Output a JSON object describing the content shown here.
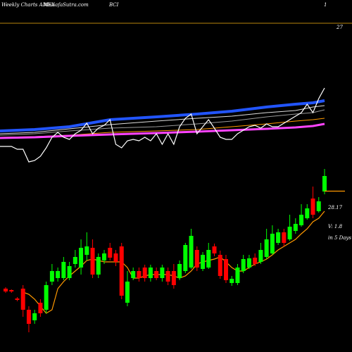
{
  "chart_data": [
    {
      "type": "candlestick",
      "title": "Weekly Charts AMEX",
      "source": "MunafaSutra.com",
      "symbol": "BCI",
      "page_number": "1",
      "top_label": "27",
      "forecast": 28.17,
      "volume_note": "V: 1.8",
      "horizon_note": "in 5 Days",
      "ylim": [
        23.6,
        33.6
      ],
      "up_color": "#00ff00",
      "down_color": "#ff0000",
      "ma_color": "#ff9900",
      "open": [
        25.4,
        25.36,
        25.12,
        25.4,
        24.8,
        24.5,
        25.0,
        24.8,
        25.6,
        25.7,
        25.7,
        25.7,
        26.1,
        26.0,
        26.36,
        26.56,
        25.8,
        26.2,
        26.56,
        26.4,
        26.6,
        25.0,
        25.7,
        25.9,
        26.0,
        25.7,
        25.9,
        25.7,
        25.9,
        25.9,
        25.7,
        25.9,
        26.0,
        26.5,
        25.96,
        26.0,
        26.6,
        26.36,
        26.24,
        25.56,
        25.56,
        25.9,
        26.0,
        26.28,
        26.16,
        26.3,
        26.4,
        26.7,
        27.0,
        26.8,
        27.04,
        27.2,
        27.4,
        27.96,
        27.6,
        28.16
      ],
      "close": [
        25.32,
        25.32,
        25.08,
        24.8,
        24.4,
        24.7,
        24.7,
        25.5,
        25.9,
        25.9,
        26.16,
        26.04,
        26.3,
        26.56,
        26.6,
        25.8,
        26.3,
        26.4,
        26.28,
        26.16,
        25.2,
        25.6,
        25.9,
        25.7,
        25.7,
        26.0,
        25.7,
        26.0,
        25.6,
        25.5,
        26.1,
        26.64,
        26.9,
        26.0,
        26.36,
        26.5,
        26.4,
        25.76,
        25.64,
        25.68,
        26.0,
        26.24,
        26.26,
        26.1,
        26.5,
        26.8,
        26.96,
        27.0,
        26.7,
        27.16,
        27.24,
        27.5,
        27.68,
        27.5,
        27.88,
        28.6
      ],
      "high": [
        25.44,
        25.38,
        25.16,
        25.5,
        24.9,
        24.8,
        25.1,
        25.6,
        26.1,
        26.0,
        26.3,
        26.16,
        26.5,
        26.8,
        27.0,
        26.8,
        26.4,
        26.5,
        26.7,
        26.5,
        26.7,
        25.9,
        26.0,
        26.0,
        26.08,
        26.08,
        26.0,
        26.08,
        26.0,
        26.1,
        26.2,
        26.7,
        27.1,
        26.6,
        26.44,
        26.7,
        26.68,
        26.48,
        26.36,
        25.76,
        26.1,
        26.36,
        26.36,
        26.4,
        26.7,
        27.1,
        27.2,
        27.1,
        27.1,
        27.5,
        27.4,
        27.8,
        27.8,
        28.3,
        28.0,
        28.8
      ],
      "low": [
        25.28,
        25.28,
        25.04,
        24.6,
        24.16,
        24.4,
        24.6,
        24.7,
        25.5,
        25.6,
        25.64,
        25.64,
        26.0,
        25.8,
        26.2,
        25.7,
        25.7,
        26.1,
        26.2,
        26.04,
        25.1,
        24.9,
        25.64,
        25.6,
        25.6,
        25.6,
        25.64,
        25.6,
        25.5,
        25.4,
        25.64,
        25.84,
        25.96,
        25.9,
        25.9,
        25.96,
        26.32,
        25.68,
        25.56,
        25.48,
        25.5,
        25.84,
        25.96,
        26.04,
        26.1,
        26.24,
        26.36,
        26.64,
        26.6,
        26.76,
        26.96,
        27.16,
        27.36,
        27.4,
        27.56,
        28.08
      ],
      "ma": [
        null,
        null,
        null,
        25.3,
        25.24,
        25.1,
        24.9,
        24.7,
        24.8,
        25.4,
        25.6,
        25.76,
        25.9,
        26.04,
        26.2,
        26.24,
        26.2,
        26.16,
        26.16,
        26.16,
        26.16,
        26.0,
        25.7,
        25.7,
        25.76,
        25.8,
        25.8,
        25.8,
        25.8,
        25.76,
        25.7,
        25.76,
        25.9,
        26.1,
        26.16,
        26.2,
        26.24,
        26.3,
        26.16,
        26.0,
        25.9,
        25.9,
        26.0,
        26.1,
        26.16,
        26.24,
        26.36,
        26.5,
        26.6,
        26.7,
        26.8,
        26.96,
        27.1,
        27.3,
        27.4,
        27.6
      ]
    },
    {
      "type": "line",
      "ylim": [
        0,
        240
      ],
      "series": [
        {
          "name": "ema-fast",
          "color": "#2255ff",
          "width": 4,
          "x": [
            0,
            5,
            11,
            18,
            26,
            33,
            39,
            45,
            50,
            53,
            55
          ],
          "values": [
            54,
            56,
            60,
            70,
            74,
            78,
            82,
            88,
            92,
            94,
            97
          ]
        },
        {
          "name": "ema-mid",
          "color": "#dddddd",
          "width": 1,
          "x": [
            0,
            5,
            11,
            18,
            26,
            33,
            39,
            45,
            50,
            53,
            55
          ],
          "values": [
            50,
            52,
            57,
            63,
            68,
            72,
            75,
            80,
            83,
            88,
            90
          ]
        },
        {
          "name": "ema-slow",
          "color": "#999999",
          "width": 1,
          "x": [
            0,
            5,
            11,
            18,
            26,
            33,
            39,
            45,
            50,
            53,
            55
          ],
          "values": [
            48,
            50,
            54,
            58,
            60,
            64,
            68,
            74,
            78,
            80,
            84
          ]
        },
        {
          "name": "ema-long",
          "color": "#ff9900",
          "width": 1,
          "x": [
            0,
            5,
            11,
            18,
            26,
            33,
            39,
            45,
            50,
            53,
            55
          ],
          "values": [
            45,
            46,
            48,
            52,
            54,
            56,
            60,
            64,
            68,
            70,
            72
          ]
        },
        {
          "name": "ema-longest",
          "color": "#ff44ff",
          "width": 3,
          "x": [
            0,
            5,
            11,
            18,
            26,
            33,
            39,
            45,
            50,
            53,
            55
          ],
          "values": [
            44,
            45,
            47,
            49,
            51,
            53,
            55,
            57,
            59,
            61,
            64
          ]
        },
        {
          "name": "oscillator",
          "color": "#ffffff",
          "width": 1.2,
          "x": [
            0,
            1,
            2,
            3,
            4,
            5,
            6,
            7,
            8,
            9,
            10,
            11,
            12,
            13,
            14,
            15,
            16,
            17,
            18,
            19,
            20,
            21,
            22,
            23,
            24,
            25,
            26,
            27,
            28,
            29,
            30,
            31,
            32,
            33,
            34,
            35,
            36,
            37,
            38,
            39,
            40,
            41,
            42,
            43,
            44,
            45,
            46,
            47,
            48,
            49,
            50,
            51,
            52,
            53,
            54,
            55
          ],
          "values": [
            32,
            32,
            28,
            28,
            10,
            12,
            18,
            30,
            45,
            52,
            45,
            42,
            50,
            55,
            65,
            50,
            58,
            62,
            70,
            35,
            30,
            40,
            42,
            40,
            45,
            40,
            50,
            35,
            50,
            35,
            60,
            72,
            78,
            50,
            60,
            70,
            58,
            45,
            42,
            42,
            50,
            55,
            60,
            62,
            58,
            64,
            60,
            60,
            65,
            70,
            75,
            80,
            92,
            80,
            100,
            115
          ]
        }
      ]
    }
  ]
}
